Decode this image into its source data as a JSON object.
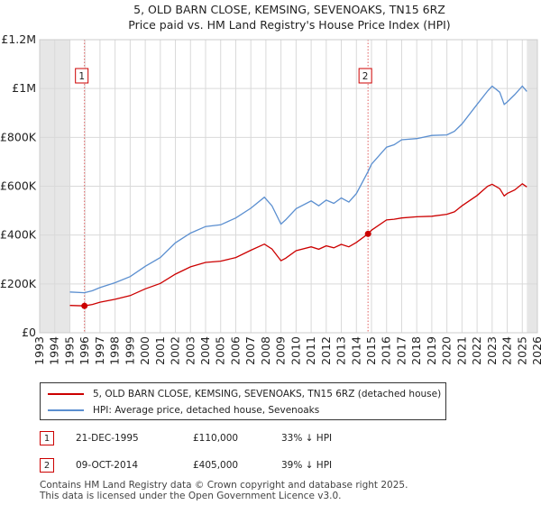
{
  "chart_data": {
    "type": "line",
    "title": "5, OLD BARN CLOSE, KEMSING, SEVENOAKS, TN15 6RZ",
    "subtitle": "Price paid vs. HM Land Registry's House Price Index (HPI)",
    "xlabel": "",
    "ylabel": "",
    "xlim": [
      1993,
      2026
    ],
    "ylim": [
      0,
      1200000
    ],
    "x_ticks": [
      "1993",
      "1994",
      "1995",
      "1996",
      "1997",
      "1998",
      "1999",
      "2000",
      "2001",
      "2002",
      "2003",
      "2004",
      "2005",
      "2006",
      "2007",
      "2008",
      "2009",
      "2010",
      "2011",
      "2012",
      "2013",
      "2014",
      "2015",
      "2016",
      "2017",
      "2018",
      "2019",
      "2020",
      "2021",
      "2022",
      "2023",
      "2024",
      "2025",
      "2026"
    ],
    "y_ticks": [
      {
        "value": 0,
        "label": "£0"
      },
      {
        "value": 200000,
        "label": "£200K"
      },
      {
        "value": 400000,
        "label": "£400K"
      },
      {
        "value": 600000,
        "label": "£600K"
      },
      {
        "value": 800000,
        "label": "£800K"
      },
      {
        "value": 1000000,
        "label": "£1M"
      },
      {
        "value": 1200000,
        "label": "£1.2M"
      }
    ],
    "data_range": [
      1995.0,
      2025.3
    ],
    "grid": true,
    "series": [
      {
        "name": "5, OLD BARN CLOSE, KEMSING, SEVENOAKS, TN15 6RZ (detached house)",
        "color": "#cc0000",
        "x": [
          1995.0,
          1995.97,
          1996.5,
          1997,
          1998,
          1999,
          2000,
          2001,
          2002,
          2003,
          2004,
          2005,
          2006,
          2007,
          2007.9,
          2008.4,
          2009.0,
          2009.3,
          2010,
          2011,
          2011.5,
          2012,
          2012.5,
          2013,
          2013.5,
          2014,
          2014.77,
          2015,
          2016,
          2016.5,
          2017,
          2018,
          2019,
          2020,
          2020.5,
          2021,
          2022,
          2022.7,
          2023,
          2023.5,
          2023.8,
          2024,
          2024.5,
          2025,
          2025.3
        ],
        "values": [
          112000,
          110000,
          116000,
          125000,
          137000,
          152000,
          180000,
          202000,
          240000,
          270000,
          288000,
          293000,
          308000,
          338000,
          363000,
          343000,
          295000,
          305000,
          336000,
          352000,
          342000,
          356000,
          348000,
          362000,
          352000,
          370000,
          405000,
          420000,
          462000,
          465000,
          470000,
          475000,
          477000,
          485000,
          495000,
          520000,
          562000,
          600000,
          608000,
          590000,
          560000,
          570000,
          585000,
          610000,
          597000
        ]
      },
      {
        "name": "HPI: Average price, detached house, Sevenoaks",
        "color": "#5b8fd0",
        "x": [
          1995.0,
          1995.97,
          1996.5,
          1997,
          1998,
          1999,
          2000,
          2001,
          2002,
          2003,
          2004,
          2005,
          2006,
          2007,
          2007.9,
          2008.4,
          2009.0,
          2009.3,
          2010,
          2011,
          2011.5,
          2012,
          2012.5,
          2013,
          2013.5,
          2014,
          2014.77,
          2015,
          2016,
          2016.5,
          2017,
          2018,
          2019,
          2020,
          2020.5,
          2021,
          2022,
          2022.7,
          2023,
          2023.5,
          2023.8,
          2024,
          2024.5,
          2025,
          2025.3
        ],
        "values": [
          167000,
          164000,
          172000,
          185000,
          205000,
          230000,
          272000,
          308000,
          368000,
          408000,
          435000,
          442000,
          470000,
          510000,
          555000,
          520000,
          445000,
          462000,
          508000,
          540000,
          520000,
          543000,
          530000,
          552000,
          535000,
          570000,
          660000,
          690000,
          760000,
          770000,
          790000,
          795000,
          808000,
          810000,
          825000,
          855000,
          935000,
          990000,
          1010000,
          985000,
          935000,
          945000,
          975000,
          1010000,
          988000
        ]
      }
    ],
    "annotations": [
      {
        "label": "1",
        "x": 1995.97
      },
      {
        "label": "2",
        "x": 2014.77
      }
    ],
    "sale_points": [
      {
        "x": 1995.97,
        "value": 110000
      },
      {
        "x": 2014.77,
        "value": 405000
      }
    ]
  },
  "legend": {
    "property": "5, OLD BARN CLOSE, KEMSING, SEVENOAKS, TN15 6RZ (detached house)",
    "hpi": "HPI: Average price, detached house, Sevenoaks"
  },
  "sales": [
    {
      "num": "1",
      "date": "21-DEC-1995",
      "price": "£110,000",
      "delta": "33% ↓ HPI"
    },
    {
      "num": "2",
      "date": "09-OCT-2014",
      "price": "£405,000",
      "delta": "39% ↓ HPI"
    }
  ],
  "footer": {
    "line1": "Contains HM Land Registry data © Crown copyright and database right 2025.",
    "line2": "This data is licensed under the Open Government Licence v3.0."
  },
  "colors": {
    "property": "#cc0000",
    "hpi": "#5b8fd0",
    "grid": "#d9d9d9",
    "shade": "#e6e6e6"
  }
}
